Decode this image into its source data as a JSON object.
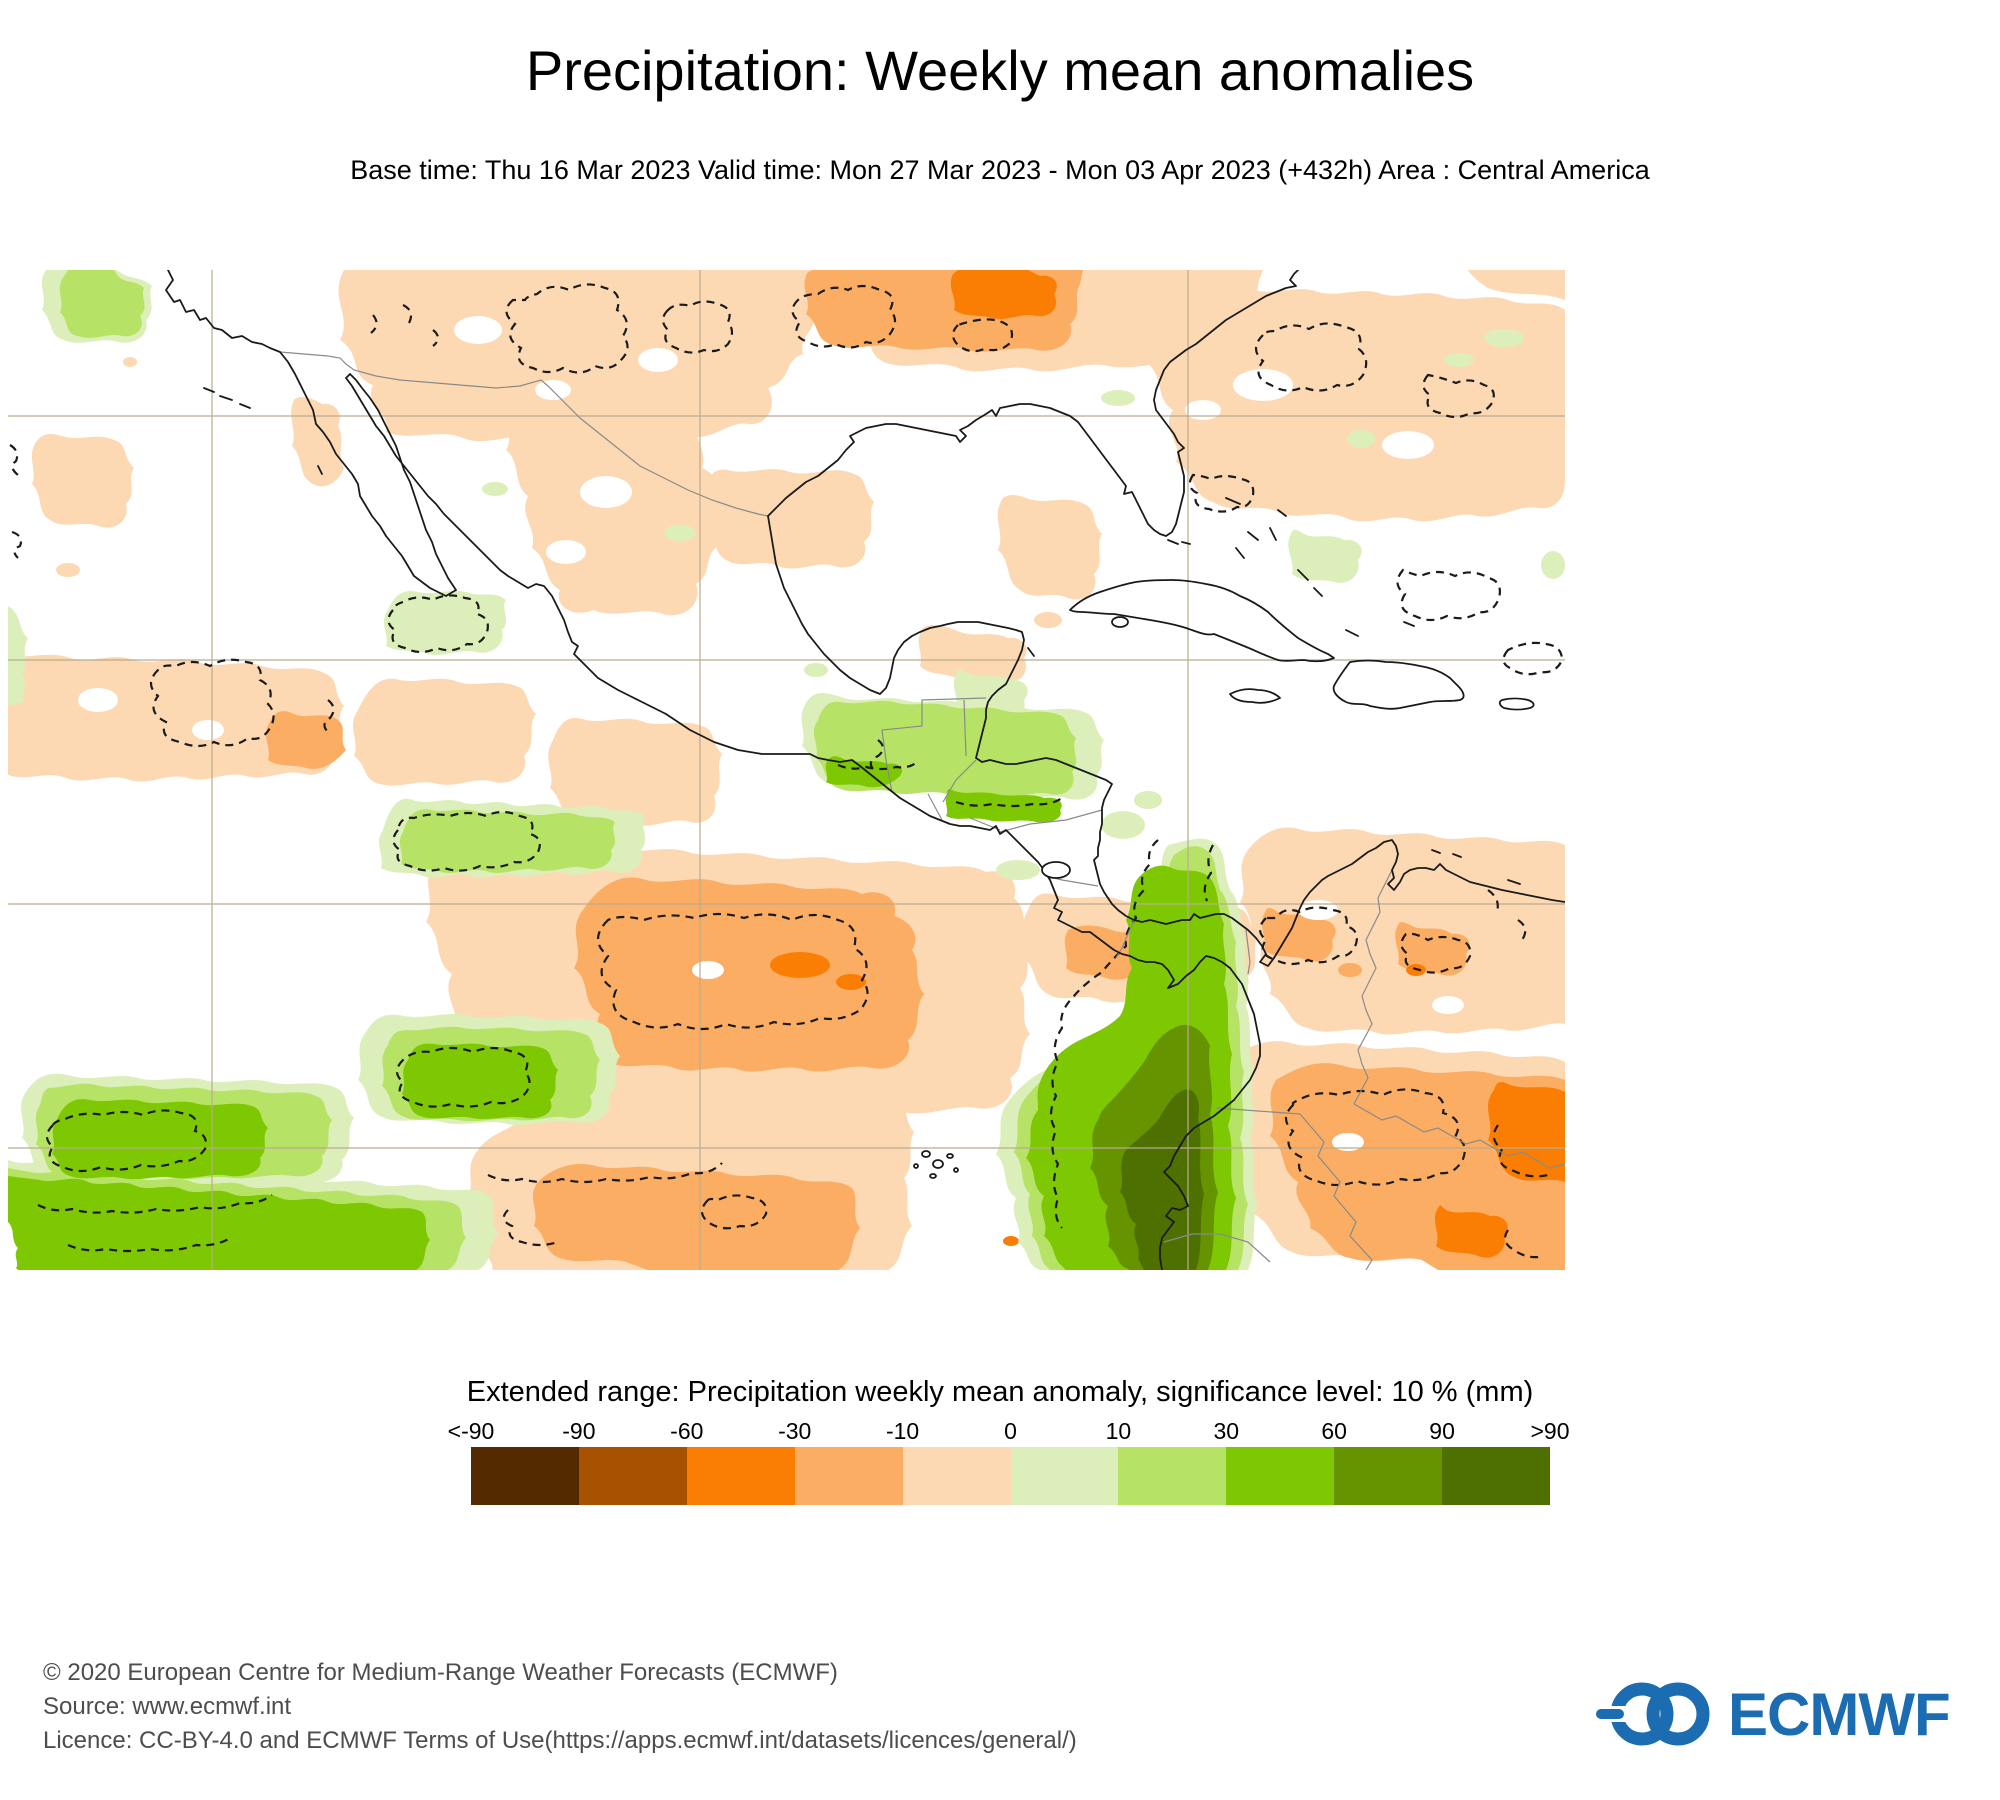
{
  "header": {
    "title": "Precipitation: Weekly mean anomalies",
    "subtitle": "Base time: Thu 16 Mar 2023 Valid time: Mon 27 Mar 2023 - Mon 03 Apr 2023 (+432h) Area : Central America"
  },
  "legend": {
    "title": "Extended range: Precipitation weekly mean anomaly, significance level: 10 % (mm)",
    "ticks": [
      "<-90",
      "-90",
      "-60",
      "-30",
      "-10",
      "0",
      "10",
      "30",
      "60",
      "90",
      ">90"
    ],
    "colors": [
      "#542A00",
      "#A65200",
      "#FB7E04",
      "#FBAD63",
      "#FCD9B3",
      "#DCEFBB",
      "#B6E366",
      "#7DC802",
      "#669400",
      "#4E7000"
    ]
  },
  "map": {
    "area": "Central America",
    "grid_color": "#b9ac90",
    "coastline_color": "#1a1a1a",
    "border_color": "#8a8a8a",
    "significance_contour_style": "black dashed",
    "anomaly_palette": {
      "dry_pale": "#FCD9B3",
      "dry_medium": "#FBAD63",
      "dry_strong": "#FB7E04",
      "wet_pale": "#DCEFBB",
      "wet_medium": "#B6E366",
      "wet_strong": "#7DC802",
      "wet_dark": "#669400",
      "wet_darkest": "#4E7000"
    }
  },
  "footer": {
    "lines": [
      "© 2020 European Centre for Medium-Range Weather Forecasts (ECMWF)",
      "Source: www.ecmwf.int",
      "Licence: CC-BY-4.0 and ECMWF Terms of Use(https://apps.ecmwf.int/datasets/licences/general/)"
    ]
  },
  "logo": {
    "text": "ECMWF",
    "color": "#1b6cb0"
  }
}
